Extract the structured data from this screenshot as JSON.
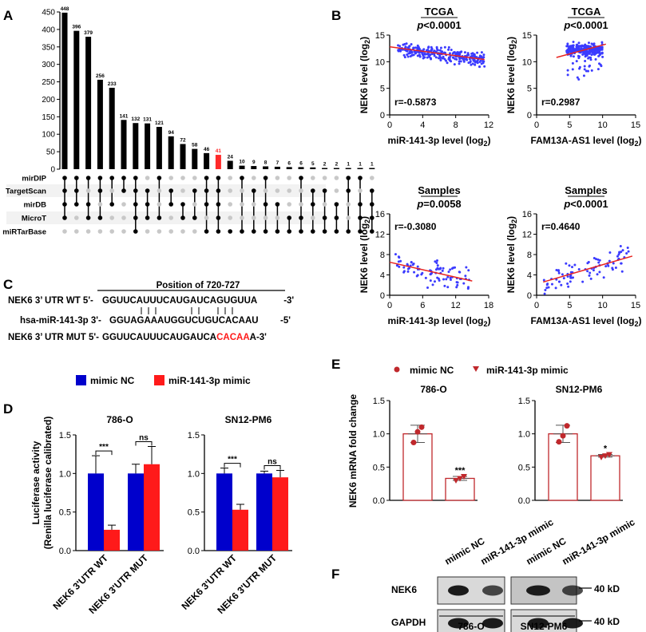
{
  "panels": {
    "A": "A",
    "B": "B",
    "C": "C",
    "D": "D",
    "E": "E",
    "F": "F"
  },
  "colors": {
    "black": "#000000",
    "highlight": "#ff2a2a",
    "blue": "#0000cc",
    "red": "#ff1a1a",
    "dot": "#3b3bff",
    "line": "#e8231f",
    "marker": "#c0282c",
    "grey": "#c8c8c8"
  },
  "chart_data": [
    {
      "id": "A",
      "type": "bar",
      "title": "",
      "ylim": [
        0,
        450
      ],
      "yticks": [
        0,
        50,
        100,
        150,
        200,
        250,
        300,
        350,
        400,
        450
      ],
      "values": [
        448,
        396,
        379,
        256,
        233,
        141,
        132,
        131,
        121,
        94,
        72,
        58,
        46,
        41,
        24,
        10,
        9,
        8,
        7,
        6,
        6,
        5,
        2,
        2,
        1,
        1,
        1
      ],
      "highlight_index": 13,
      "sets": [
        "mirDIP",
        "TargetScan",
        "mirDB",
        "MicroT",
        "miRTarBase"
      ],
      "memberships": [
        [
          0,
          1,
          2,
          3
        ],
        [
          0,
          1,
          2
        ],
        [
          0,
          2,
          3
        ],
        [
          0,
          1,
          3
        ],
        [
          0,
          2
        ],
        [
          0,
          1
        ],
        [
          0,
          1,
          2,
          3,
          4
        ],
        [
          1,
          2,
          3
        ],
        [
          0,
          3
        ],
        [
          1,
          2
        ],
        [
          2,
          3
        ],
        [
          1,
          3
        ],
        [
          0,
          1,
          2,
          4
        ],
        [
          0,
          1,
          2,
          3,
          4
        ],
        [
          4
        ],
        [
          0,
          4
        ],
        [
          1,
          4
        ],
        [
          0,
          2,
          4
        ],
        [
          2,
          4
        ],
        [
          3,
          4
        ],
        [
          0,
          3,
          4
        ],
        [
          1,
          2,
          4
        ],
        [
          1,
          3,
          4
        ],
        [
          2,
          3,
          4
        ],
        [
          0,
          1,
          4
        ],
        [
          0,
          2,
          3,
          4
        ],
        [
          1,
          2,
          3,
          4
        ]
      ]
    },
    {
      "id": "B1",
      "type": "scatter",
      "title": "TCGA",
      "subtitle": "p<0.0001",
      "xlabel": "miR-141-3p level (log2)",
      "ylabel": "NEK6 level (log2)",
      "xlim": [
        0,
        12
      ],
      "ylim": [
        0,
        15
      ],
      "xticks": [
        0,
        4,
        8,
        12
      ],
      "yticks": [
        0,
        5,
        10,
        15
      ],
      "r_text": "r=-0.5873",
      "fit": [
        [
          0,
          12.8
        ],
        [
          11.5,
          10.4
        ]
      ]
    },
    {
      "id": "B2",
      "type": "scatter",
      "title": "TCGA",
      "subtitle": "p<0.0001",
      "xlabel": "FAM13A-AS1 level (log2)",
      "ylabel": "NEK6 level (log2)",
      "xlim": [
        0,
        15
      ],
      "ylim": [
        0,
        15
      ],
      "xticks": [
        0,
        5,
        10,
        15
      ],
      "yticks": [
        0,
        5,
        10,
        15
      ],
      "r_text": "r=0.2987",
      "fit": [
        [
          3,
          10.8
        ],
        [
          10.5,
          13.3
        ]
      ]
    },
    {
      "id": "B3",
      "type": "scatter",
      "title": "Samples",
      "subtitle": "p=0.0058",
      "xlabel": "miR-141-3p level (log2)",
      "ylabel": "NEK6 level (log2)",
      "xlim": [
        0,
        18
      ],
      "ylim": [
        0,
        16
      ],
      "xticks": [
        0,
        6,
        12,
        18
      ],
      "yticks": [
        0,
        4,
        8,
        12,
        16
      ],
      "r_text": "r=-0.3080",
      "fit": [
        [
          0,
          6.5
        ],
        [
          15,
          2.8
        ]
      ]
    },
    {
      "id": "B4",
      "type": "scatter",
      "title": "Samples",
      "subtitle": "p<0.0001",
      "xlabel": "FAM13A-AS1 level (log2)",
      "ylabel": "NEK6 level (log2)",
      "xlim": [
        0,
        15
      ],
      "ylim": [
        0,
        16
      ],
      "xticks": [
        0,
        5,
        10,
        15
      ],
      "yticks": [
        0,
        4,
        8,
        12,
        16
      ],
      "r_text": "r=0.4640",
      "fit": [
        [
          1,
          2.6
        ],
        [
          14.5,
          7.7
        ]
      ]
    },
    {
      "id": "D",
      "type": "bar",
      "ylabel": "Luciferase activity (Renilla luciferase calibrated)",
      "legend": [
        "mimic NC",
        "miR-141-3p mimic"
      ],
      "groups": [
        {
          "cell": "786-O",
          "categories": [
            "NEK6 3'UTR WT",
            "NEK6 3'UTR MUT"
          ],
          "series": [
            {
              "name": "mimic NC",
              "values": [
                1.0,
                1.0
              ],
              "err": [
                0.23,
                0.12
              ]
            },
            {
              "name": "miR-141-3p mimic",
              "values": [
                0.27,
                1.12
              ],
              "err": [
                0.06,
                0.23
              ]
            }
          ],
          "sig": [
            "***",
            "ns"
          ],
          "ylim": [
            0,
            1.5
          ],
          "yticks": [
            0,
            0.5,
            1.0,
            1.5
          ]
        },
        {
          "cell": "SN12-PM6",
          "categories": [
            "NEK6 3'UTR WT",
            "NEK6 3'UTR MUT"
          ],
          "series": [
            {
              "name": "mimic NC",
              "values": [
                1.0,
                1.0
              ],
              "err": [
                0.07,
                0.03
              ]
            },
            {
              "name": "miR-141-3p mimic",
              "values": [
                0.53,
                0.95
              ],
              "err": [
                0.07,
                0.09
              ]
            }
          ],
          "sig": [
            "***",
            "ns"
          ],
          "ylim": [
            0,
            1.5
          ],
          "yticks": [
            0,
            0.5,
            1.0,
            1.5
          ]
        }
      ]
    },
    {
      "id": "E",
      "type": "bar",
      "ylabel": "NEK6 mRNA fold change",
      "legend": [
        "mimic NC",
        "miR-141-3p mimic"
      ],
      "groups": [
        {
          "cell": "786-O",
          "values": [
            1.0,
            0.33
          ],
          "err": [
            0.13,
            0.03
          ],
          "points": [
            [
              0.87,
              1.03,
              1.1
            ],
            [
              0.3,
              0.33,
              0.36
            ]
          ],
          "sig": "***",
          "ylim": [
            0,
            1.5
          ],
          "yticks": [
            0,
            0.5,
            1.0,
            1.5
          ]
        },
        {
          "cell": "SN12-PM6",
          "values": [
            1.0,
            0.67
          ],
          "err": [
            0.13,
            0.02
          ],
          "points": [
            [
              0.88,
              0.97,
              1.12
            ],
            [
              0.65,
              0.67,
              0.69
            ]
          ],
          "sig": "*",
          "ylim": [
            0,
            1.5
          ],
          "yticks": [
            0,
            0.5,
            1.0,
            1.5
          ]
        }
      ]
    }
  ],
  "panelC": {
    "position": "Position of 720-727",
    "wt_label": "NEK6 3’ UTR WT 5'-",
    "wt_seq": "GGUUCAUUUCAUGAUCAGUGUUA",
    "wt_end": " -3'",
    "mir_label": "hsa-miR-141-3p 3'-",
    "mir_seq": "GGUAGAAAUGGUCUGUCACAAU",
    "mir_end": "-5'",
    "mut_label": "NEK6 3’ UTR MUT 5'-",
    "mut_seq_a": "GGUUCAUUUCAUGAUCA",
    "mut_seq_b": "CACAA",
    "mut_seq_c": "A-3'"
  },
  "panelF": {
    "lanes": [
      "mimic NC",
      "miR-141-3p mimic",
      "mimic NC",
      "miR-141-3p mimic"
    ],
    "rows": [
      "NEK6",
      "GAPDH"
    ],
    "markers": [
      "40 kD",
      "40 kD"
    ],
    "cells": [
      "786-O",
      "SN12-PM6"
    ]
  }
}
